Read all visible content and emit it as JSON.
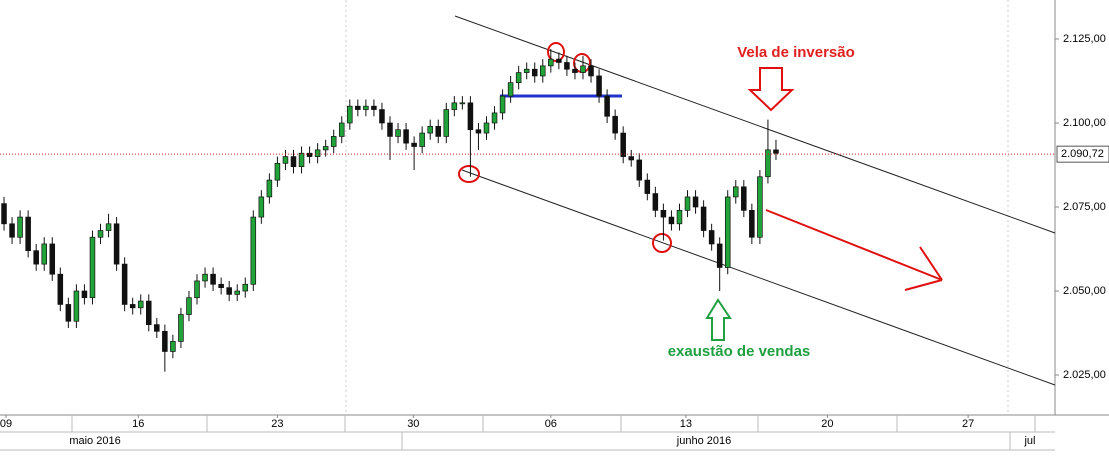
{
  "chart_data": {
    "type": "candlestick",
    "x": [
      0,
      1,
      2,
      3,
      4,
      5,
      6,
      7,
      8,
      9,
      10,
      11,
      12,
      13,
      14,
      15,
      16,
      17,
      18,
      19,
      20,
      21,
      22,
      23,
      24,
      25,
      26,
      27,
      28,
      29,
      30,
      31,
      32,
      33,
      34,
      35,
      36,
      37,
      38,
      39,
      40,
      41,
      42,
      43,
      44,
      45,
      46,
      47,
      48,
      49,
      50,
      51,
      52,
      53,
      54,
      55,
      56,
      57,
      58,
      59,
      60,
      61,
      62,
      63,
      64,
      65,
      66,
      67,
      68,
      69,
      70,
      71,
      72,
      73,
      74,
      75,
      76,
      77,
      78,
      79,
      80,
      81,
      82,
      83,
      84,
      85,
      86,
      87,
      88,
      89,
      90,
      91,
      92,
      93,
      94,
      95,
      96
    ],
    "open": [
      2076,
      2070,
      2066,
      2072,
      2062,
      2058,
      2064,
      2055,
      2046,
      2041,
      2050,
      2048,
      2066,
      2068,
      2070,
      2058,
      2046,
      2045,
      2047,
      2040,
      2038,
      2032,
      2035,
      2043,
      2048,
      2053,
      2055,
      2052,
      2051,
      2049,
      2050,
      2052,
      2072,
      2078,
      2083,
      2088,
      2090,
      2087,
      2091,
      2090,
      2092,
      2093,
      2096,
      2100,
      2105,
      2104,
      2105,
      2104,
      2100,
      2096,
      2098,
      2094,
      2093,
      2097,
      2099,
      2096,
      2104,
      2106,
      2106,
      2098,
      2097,
      2100,
      2103,
      2108,
      2112,
      2115,
      2116,
      2114,
      2117,
      2119,
      2118,
      2116,
      2115,
      2117,
      2114,
      2108,
      2102,
      2097,
      2090,
      2089,
      2083,
      2079,
      2074,
      2072,
      2070,
      2074,
      2078,
      2075,
      2068,
      2064,
      2057,
      2078,
      2081,
      2074,
      2066,
      2084,
      2092
    ],
    "high": [
      2078,
      2072,
      2074,
      2074,
      2064,
      2066,
      2066,
      2057,
      2048,
      2052,
      2052,
      2068,
      2070,
      2073,
      2072,
      2060,
      2048,
      2049,
      2049,
      2042,
      2040,
      2037,
      2045,
      2050,
      2055,
      2057,
      2057,
      2054,
      2053,
      2052,
      2054,
      2074,
      2080,
      2085,
      2090,
      2092,
      2092,
      2093,
      2093,
      2094,
      2095,
      2098,
      2102,
      2107,
      2107,
      2107,
      2107,
      2106,
      2102,
      2100,
      2100,
      2096,
      2099,
      2101,
      2101,
      2106,
      2108,
      2108,
      2108,
      2100,
      2102,
      2105,
      2110,
      2114,
      2117,
      2118,
      2118,
      2119,
      2122,
      2121,
      2120,
      2118,
      2120,
      2119,
      2116,
      2110,
      2104,
      2099,
      2092,
      2091,
      2085,
      2081,
      2076,
      2074,
      2076,
      2080,
      2080,
      2077,
      2070,
      2066,
      2080,
      2083,
      2083,
      2076,
      2086,
      2101,
      2095
    ],
    "low": [
      2068,
      2064,
      2064,
      2060,
      2056,
      2056,
      2053,
      2044,
      2039,
      2039,
      2046,
      2046,
      2064,
      2066,
      2056,
      2044,
      2043,
      2043,
      2038,
      2036,
      2026,
      2030,
      2033,
      2041,
      2046,
      2051,
      2050,
      2049,
      2047,
      2047,
      2048,
      2050,
      2070,
      2076,
      2081,
      2086,
      2085,
      2085,
      2088,
      2088,
      2090,
      2091,
      2094,
      2098,
      2102,
      2102,
      2102,
      2098,
      2089,
      2094,
      2092,
      2086,
      2091,
      2095,
      2094,
      2094,
      2102,
      2104,
      2084,
      2092,
      2095,
      2098,
      2101,
      2106,
      2110,
      2113,
      2112,
      2112,
      2115,
      2116,
      2114,
      2113,
      2113,
      2112,
      2106,
      2100,
      2095,
      2088,
      2087,
      2081,
      2077,
      2072,
      2065,
      2068,
      2068,
      2072,
      2073,
      2066,
      2062,
      2050,
      2055,
      2076,
      2072,
      2064,
      2064,
      2082,
      2089
    ],
    "close": [
      2070,
      2066,
      2072,
      2062,
      2058,
      2064,
      2055,
      2046,
      2041,
      2050,
      2048,
      2066,
      2068,
      2070,
      2058,
      2046,
      2045,
      2047,
      2040,
      2038,
      2032,
      2035,
      2043,
      2048,
      2053,
      2055,
      2052,
      2051,
      2049,
      2050,
      2052,
      2072,
      2078,
      2083,
      2088,
      2090,
      2087,
      2091,
      2090,
      2092,
      2093,
      2096,
      2100,
      2105,
      2104,
      2105,
      2104,
      2100,
      2096,
      2098,
      2094,
      2093,
      2097,
      2099,
      2096,
      2104,
      2106,
      2106,
      2098,
      2097,
      2100,
      2103,
      2108,
      2112,
      2115,
      2116,
      2114,
      2117,
      2119,
      2118,
      2116,
      2115,
      2117,
      2114,
      2108,
      2102,
      2097,
      2090,
      2089,
      2083,
      2079,
      2074,
      2072,
      2070,
      2074,
      2078,
      2075,
      2068,
      2064,
      2057,
      2078,
      2081,
      2074,
      2066,
      2084,
      2092,
      2091
    ],
    "up_color": "#22a33a",
    "down_color": "#111111",
    "xlim": [
      -0.5,
      130.7
    ],
    "xticks": [
      {
        "value": 0.25,
        "label": "09"
      },
      {
        "value": 16.7,
        "label": "16"
      },
      {
        "value": 34,
        "label": "23"
      },
      {
        "value": 50.9,
        "label": "30"
      },
      {
        "value": 68,
        "label": "06"
      },
      {
        "value": 84.8,
        "label": "13"
      },
      {
        "value": 102.4,
        "label": "20"
      },
      {
        "value": 119.9,
        "label": "27"
      }
    ],
    "months": [
      "maio 2016",
      "junho 2016",
      "jul"
    ],
    "ylim": [
      2013.1,
      2136.6
    ],
    "yticks": [
      {
        "value": 2025,
        "label": "2.025,00"
      },
      {
        "value": 2050,
        "label": "2.050,00"
      },
      {
        "value": 2075,
        "label": "2.075,00"
      },
      {
        "value": 2100,
        "label": "2.100,00"
      },
      {
        "value": 2125,
        "label": "2.125,00"
      }
    ],
    "last_price": {
      "value": 2090.72,
      "label": "2.090,72",
      "color": "#d02020"
    },
    "annotations": [
      "Vela de inversão",
      "exaustão de vendas"
    ]
  }
}
